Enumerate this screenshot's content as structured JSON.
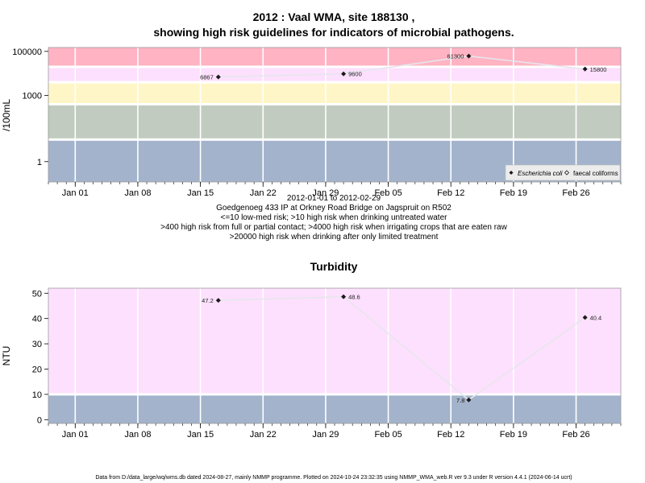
{
  "chart_data": [
    {
      "type": "line",
      "title": "2012 : Vaal WMA, site 188130 ,",
      "title_line2": "showing high risk guidelines for indicators of microbial pathogens.",
      "ylabel": "/100mL",
      "y_scale": "log",
      "ylim": [
        0.12,
        150000
      ],
      "y_ticks": [
        1,
        1000,
        100000
      ],
      "y_tick_labels": [
        "1",
        "1000",
        "100000"
      ],
      "x_ticks": [
        "2012-01-01",
        "2012-01-08",
        "2012-01-15",
        "2012-01-22",
        "2012-01-29",
        "2012-02-05",
        "2012-02-12",
        "2012-02-19",
        "2012-02-26"
      ],
      "x_tick_labels": [
        "Jan 01",
        "Jan 08",
        "Jan 15",
        "Jan 22",
        "Jan 29",
        "Feb 05",
        "Feb 12",
        "Feb 19",
        "Feb 26"
      ],
      "xlim": [
        "2011-12-29",
        "2012-03-02"
      ],
      "grid": true,
      "bands": [
        {
          "from": 0.12,
          "to": 10,
          "color": "#a3b3cb"
        },
        {
          "from": 10,
          "to": 400,
          "color": "#c2cbc0"
        },
        {
          "from": 400,
          "to": 4000,
          "color": "#fff6c7"
        },
        {
          "from": 4000,
          "to": 20000,
          "color": "#fde0fd"
        },
        {
          "from": 20000,
          "to": 150000,
          "color": "#ffb3c3"
        }
      ],
      "series": [
        {
          "name": "Escherichia coli",
          "marker": "filled-diamond",
          "color": "#e6e6ee",
          "x": [
            "2012-01-17",
            "2012-01-31",
            "2012-02-14",
            "2012-02-27"
          ],
          "y": [
            6867,
            9600,
            61300,
            15800
          ],
          "labels": [
            "6867",
            "9600",
            "61300",
            "15800"
          ]
        },
        {
          "name": "faecal coliforms",
          "marker": "open-diamond",
          "x": [],
          "y": []
        }
      ],
      "legend_position": "bottom-right",
      "caption_lines": [
        "2012-01-01 to 2012-02-29",
        "Goedgenoeg 433 IP at Orkney Road Bridge on Jagspruit on R502",
        "<=10 low-med risk; >10 high risk when drinking untreated water",
        ">400 high risk from full or partial contact; >4000 high risk when irrigating crops that are eaten raw",
        ">20000 high risk when drinking after only limited treatment"
      ]
    },
    {
      "type": "line",
      "title": "Turbidity",
      "ylabel": "NTU",
      "ylim": [
        -1.5,
        52
      ],
      "y_ticks": [
        0,
        10,
        20,
        30,
        40,
        50
      ],
      "y_tick_labels": [
        "0",
        "10",
        "20",
        "30",
        "40",
        "50"
      ],
      "x_ticks": [
        "2012-01-01",
        "2012-01-08",
        "2012-01-15",
        "2012-01-22",
        "2012-01-29",
        "2012-02-05",
        "2012-02-12",
        "2012-02-19",
        "2012-02-26"
      ],
      "x_tick_labels": [
        "Jan 01",
        "Jan 08",
        "Jan 15",
        "Jan 22",
        "Jan 29",
        "Feb 05",
        "Feb 12",
        "Feb 19",
        "Feb 26"
      ],
      "xlim": [
        "2011-12-29",
        "2012-03-02"
      ],
      "grid": true,
      "bands": [
        {
          "from": -1.5,
          "to": 10,
          "color": "#a3b3cb"
        },
        {
          "from": 10,
          "to": 52,
          "color": "#fde0fd"
        }
      ],
      "series": [
        {
          "marker": "filled-diamond",
          "color": "#e6e6ee",
          "x": [
            "2012-01-17",
            "2012-01-31",
            "2012-02-14",
            "2012-02-27"
          ],
          "y": [
            47.2,
            48.6,
            7.8,
            40.4
          ],
          "labels": [
            "47.2",
            "48.6",
            "7.8",
            "40.4"
          ]
        }
      ]
    }
  ],
  "footer": "Data from D:/data_large/wq/wms.db dated 2024-08-27, mainly NMMP programme. Plotted on 2024-10-24 23:32:35 using NMMP_WMA_web.R ver 9.3 under R version 4.4.1 (2024-06-14 ucrt)"
}
